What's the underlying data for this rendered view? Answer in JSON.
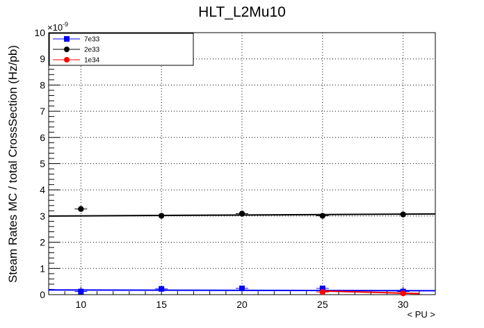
{
  "chart_data": {
    "type": "scatter",
    "title": "HLT_L2Mu10",
    "xlabel": "< PU >",
    "ylabel": "Steam Rates MC / total CrossSection (Hz/pb)",
    "y_exponent_base": "×10",
    "y_exponent_power": "-9",
    "xlim": [
      8,
      32
    ],
    "ylim": [
      0,
      10
    ],
    "xticks": [
      10,
      15,
      20,
      25,
      30
    ],
    "yticks": [
      0,
      1,
      2,
      3,
      4,
      5,
      6,
      7,
      8,
      9,
      10
    ],
    "grid": true,
    "legend_position": "top-left",
    "series": [
      {
        "name": "7e33",
        "color": "#0000ff",
        "marker": "square",
        "x": [
          10,
          15,
          20,
          25,
          30
        ],
        "y": [
          0.12,
          0.22,
          0.24,
          0.24,
          0.12
        ],
        "fit": {
          "x_from": 8,
          "x_to": 32,
          "y_from": 0.18,
          "y_to": 0.15
        }
      },
      {
        "name": "2e33",
        "color": "#000000",
        "marker": "circle",
        "x": [
          10,
          15,
          20,
          25,
          30
        ],
        "y": [
          3.27,
          3.01,
          3.09,
          3.01,
          3.06
        ],
        "fit": {
          "x_from": 8,
          "x_to": 32,
          "y_from": 3.0,
          "y_to": 3.08
        }
      },
      {
        "name": "1e34",
        "color": "#ff0000",
        "marker": "circle",
        "x": [
          25,
          30
        ],
        "y": [
          0.1,
          0.05
        ],
        "fit": {
          "x_from": 25,
          "x_to": 31,
          "y_from": 0.14,
          "y_to": 0.04
        }
      }
    ]
  }
}
